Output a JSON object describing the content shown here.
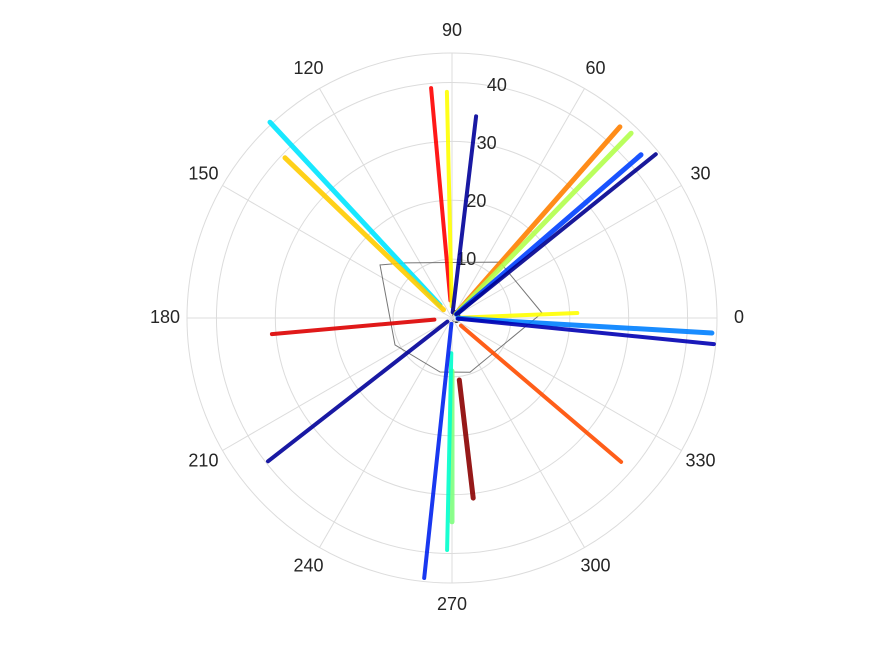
{
  "chart_data": {
    "type": "polar",
    "rlim": [
      0,
      45
    ],
    "rticks": [
      0,
      10,
      20,
      30,
      40
    ],
    "thetaticks": [
      0,
      30,
      60,
      90,
      120,
      150,
      180,
      210,
      240,
      270,
      300,
      330
    ],
    "grid": true,
    "series": [
      {
        "color": "#555555",
        "width": 1,
        "theta": [
          130.5,
          49.4,
          3.2,
          288.4,
          257.5,
          205.3,
          143.6,
          130.5
        ],
        "r": [
          12.3,
          12.5,
          15.3,
          9.7,
          9.4,
          10.7,
          15.2,
          12.3
        ]
      },
      {
        "color": "#ff0000",
        "width": 4,
        "theta": [
          95.2,
          95.2
        ],
        "r": [
          3,
          39.2
        ]
      },
      {
        "color": "#ffff00",
        "width": 4,
        "theta": [
          91.3,
          91.3
        ],
        "r": [
          2,
          38.4
        ]
      },
      {
        "color": "#000099",
        "width": 4,
        "theta": [
          83.2,
          83.2
        ],
        "r": [
          1,
          34.5
        ]
      },
      {
        "color": "#00e5ff",
        "width": 5,
        "theta": [
          132.9,
          132.9
        ],
        "r": [
          3,
          45.4
        ]
      },
      {
        "color": "#ffcc00",
        "width": 5,
        "theta": [
          136.2,
          136.2
        ],
        "r": [
          2,
          39.3
        ]
      },
      {
        "color": "#ff7f00",
        "width": 5,
        "theta": [
          48.7,
          48.7
        ],
        "r": [
          1,
          43.2
        ]
      },
      {
        "color": "#b2ff4c",
        "width": 5,
        "theta": [
          45.9,
          45.9
        ],
        "r": [
          1,
          43.7
        ]
      },
      {
        "color": "#0040ff",
        "width": 5,
        "theta": [
          40.8,
          40.8
        ],
        "r": [
          1,
          42.4
        ]
      },
      {
        "color": "#00008f",
        "width": 4,
        "theta": [
          38.8,
          38.8
        ],
        "r": [
          1,
          44.4
        ]
      },
      {
        "color": "#ffff00",
        "width": 4,
        "theta": [
          2.3,
          2.3
        ],
        "r": [
          1,
          21.3
        ]
      },
      {
        "color": "#0080ff",
        "width": 5,
        "theta": [
          356.7,
          356.7
        ],
        "r": [
          1,
          44.2
        ]
      },
      {
        "color": "#0000b2",
        "width": 4,
        "theta": [
          354.3,
          354.3
        ],
        "r": [
          1,
          44.7
        ]
      },
      {
        "color": "#ff4c00",
        "width": 4,
        "theta": [
          319.6,
          319.6
        ],
        "r": [
          2,
          37.7
        ]
      },
      {
        "color": "#8b0000",
        "width": 5,
        "theta": [
          276.7,
          276.7
        ],
        "r": [
          10.6,
          30.8
        ]
      },
      {
        "color": "#80ff80",
        "width": 5,
        "theta": [
          270,
          270
        ],
        "r": [
          9,
          34.6
        ]
      },
      {
        "color": "#00ffcc",
        "width": 4,
        "theta": [
          268.8,
          268.8
        ],
        "r": [
          6,
          39.4
        ]
      },
      {
        "color": "#0022ee",
        "width": 4,
        "theta": [
          263.9,
          263.9
        ],
        "r": [
          1,
          44.4
        ]
      },
      {
        "color": "#000099",
        "width": 4,
        "theta": [
          217.9,
          217.9
        ],
        "r": [
          1,
          39.6
        ]
      },
      {
        "color": "#dd0000",
        "width": 4,
        "theta": [
          185.1,
          185.1
        ],
        "r": [
          3,
          30.7
        ]
      }
    ]
  }
}
